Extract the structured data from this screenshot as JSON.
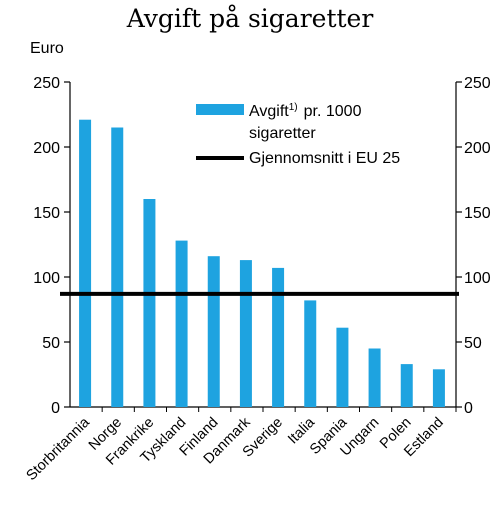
{
  "chart_data": {
    "type": "bar",
    "title": "Avgift på sigaretter",
    "ylabel": "Euro",
    "ylim": [
      0,
      250
    ],
    "yticks": [
      0,
      50,
      100,
      150,
      200,
      250
    ],
    "categories": [
      "Storbritannia",
      "Norge",
      "Frankrike",
      "Tyskland",
      "Finland",
      "Danmark",
      "Sverige",
      "Italia",
      "Spania",
      "Ungarn",
      "Polen",
      "Estland"
    ],
    "series": [
      {
        "name": "Avgift1) pr. 1000 sigaretter",
        "values": [
          221,
          215,
          160,
          128,
          116,
          113,
          107,
          82,
          61,
          45,
          33,
          29
        ],
        "color": "#1ea3e0"
      }
    ],
    "reference_line": {
      "name": "Gjennomsnitt i EU 25",
      "value": 87,
      "color": "#000000"
    },
    "legend": {
      "bar_label_main": "Avgift",
      "bar_label_sup": "1)",
      "bar_label_rest": "pr. 1000",
      "bar_label_line2": "sigaretter",
      "line_label": "Gjennomsnitt i EU 25",
      "position": "top-right"
    },
    "grid": false
  }
}
